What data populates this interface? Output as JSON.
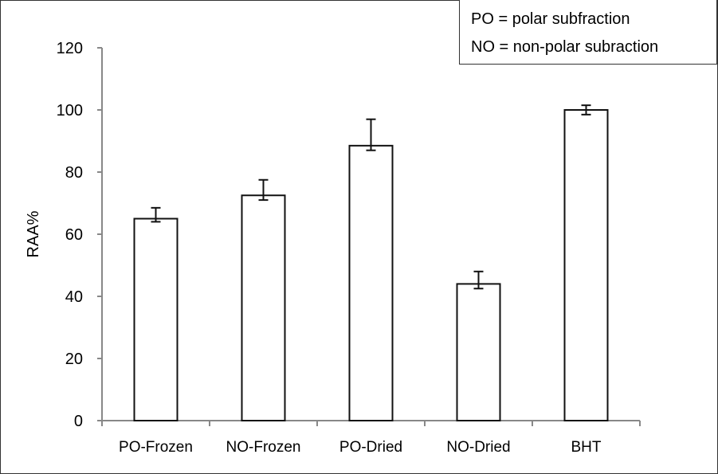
{
  "chart_data": {
    "type": "bar",
    "title": "",
    "xlabel": "",
    "ylabel": "RAA%",
    "ylim": [
      0,
      120
    ],
    "yticks": [
      0,
      20,
      40,
      60,
      80,
      100,
      120
    ],
    "categories": [
      "PO-Frozen",
      "NO-Frozen",
      "PO-Dried",
      "NO-Dried",
      "BHT"
    ],
    "values": [
      65,
      72.5,
      88.5,
      44,
      100
    ],
    "error_low": [
      64,
      71,
      87,
      42.5,
      98.5
    ],
    "error_high": [
      68.5,
      77.5,
      97,
      48,
      101.5
    ],
    "grid": false,
    "annotations": [
      "PO = polar subfraction",
      "NO = non-polar subraction"
    ],
    "annotation_placement": "top-right"
  }
}
